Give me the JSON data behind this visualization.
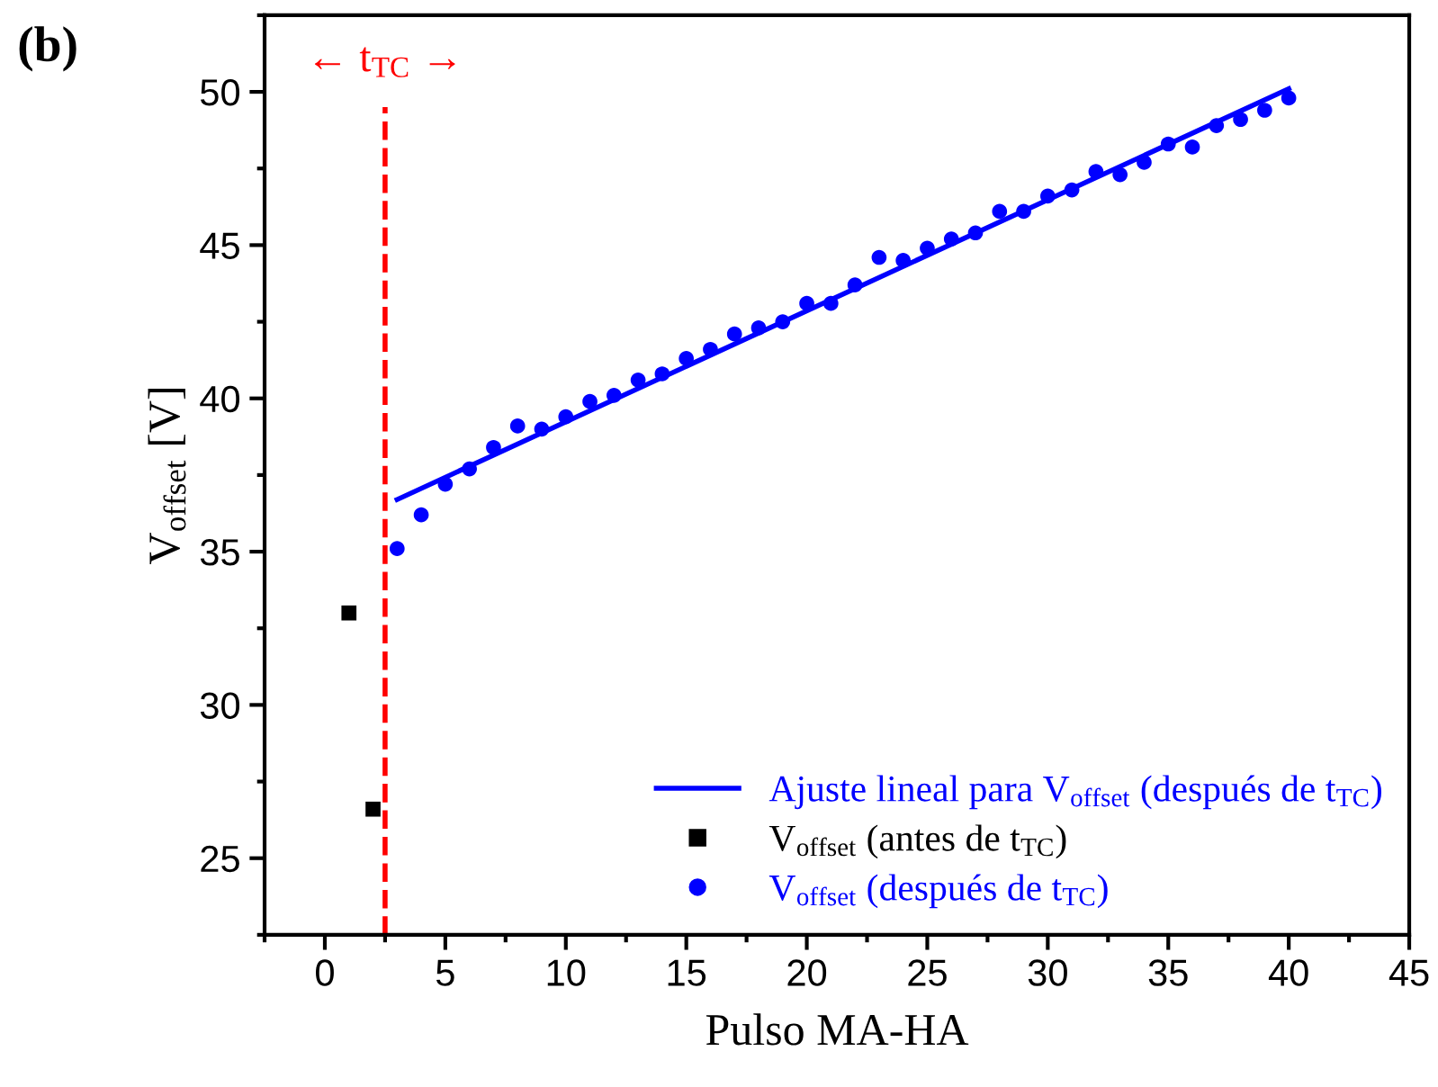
{
  "chart_data": {
    "type": "scatter",
    "xlabel": "Pulso MA-HA",
    "ylabel": "V$_{offset}$ [V]",
    "annotations": [
      "(b)"
    ],
    "xlim": [
      -2.5,
      45
    ],
    "xticks": [
      0,
      5,
      10,
      15,
      20,
      25,
      30,
      35,
      40,
      45
    ],
    "ylim": [
      22.5,
      52.5
    ],
    "yticks": [
      25,
      30,
      35,
      40,
      45,
      50
    ],
    "grid": false,
    "legend": "bottom right",
    "ref_lines": [
      {
        "axis": "x",
        "value": 2.5,
        "label": "← t$_{TC}$ →",
        "color": "#ff0000",
        "line_style": "dashed"
      }
    ],
    "series": [
      {
        "name": "Ajuste lineal para V$_{offset}$ (después de t$_{TC}$)",
        "type": "line",
        "color": "#0000ff",
        "line_style": "solid",
        "marker": "none",
        "x": [
          3,
          40
        ],
        "values": [
          36.7,
          50.1
        ]
      },
      {
        "name": "V$_{offset}$ (antes de t$_{TC}$)",
        "type": "scatter",
        "color": "#000000",
        "marker": "square",
        "x": [
          1,
          2
        ],
        "values": [
          33.0,
          26.6
        ]
      },
      {
        "name": "V$_{offset}$ (después de t$_{TC}$)",
        "color": "#0000ff",
        "marker": "circle",
        "x": [
          3,
          4,
          5,
          6,
          7,
          8,
          9,
          10,
          11,
          12,
          13,
          14,
          15,
          16,
          17,
          18,
          19,
          20,
          21,
          22,
          23,
          24,
          25,
          26,
          27,
          28,
          29,
          30,
          31,
          32,
          33,
          34,
          35,
          36,
          37,
          38,
          39,
          40
        ],
        "values": [
          35.1,
          36.2,
          37.2,
          37.7,
          38.4,
          39.1,
          39.0,
          39.4,
          39.9,
          40.1,
          40.6,
          40.8,
          41.3,
          41.6,
          42.1,
          42.3,
          42.5,
          43.1,
          43.1,
          43.7,
          44.6,
          44.5,
          44.9,
          45.2,
          45.4,
          46.1,
          46.1,
          46.6,
          46.8,
          47.4,
          47.3,
          47.7,
          48.3,
          48.2,
          48.9,
          49.1,
          49.4,
          49.8
        ]
      }
    ]
  }
}
